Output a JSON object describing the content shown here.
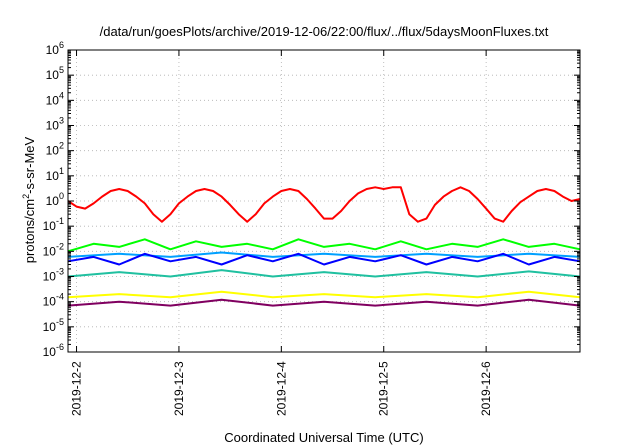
{
  "chart_data": {
    "type": "line",
    "title": "/data/run/goesPlots/archive/2019-12-06/22:00/flux/../flux/5daysMoonFluxes.txt",
    "xlabel": "Coordinated Universal Time (UTC)",
    "ylabel": {
      "base": "protons/cm",
      "sup": "2",
      "rest": "-s-sr-MeV"
    },
    "y_scale": "log",
    "ylim": [
      1e-06,
      1000000.0
    ],
    "y_ticks": [
      {
        "base": "10",
        "exp": "-6",
        "value": 1e-06
      },
      {
        "base": "10",
        "exp": "-5",
        "value": 1e-05
      },
      {
        "base": "10",
        "exp": "-4",
        "value": 0.0001
      },
      {
        "base": "10",
        "exp": "-3",
        "value": 0.001
      },
      {
        "base": "10",
        "exp": "-2",
        "value": 0.01
      },
      {
        "base": "10",
        "exp": "-1",
        "value": 0.1
      },
      {
        "base": "10",
        "exp": "0",
        "value": 1
      },
      {
        "base": "10",
        "exp": "1",
        "value": 10
      },
      {
        "base": "10",
        "exp": "2",
        "value": 100
      },
      {
        "base": "10",
        "exp": "3",
        "value": 1000
      },
      {
        "base": "10",
        "exp": "4",
        "value": 10000
      },
      {
        "base": "10",
        "exp": "5",
        "value": 100000
      },
      {
        "base": "10",
        "exp": "6",
        "value": 1000000
      }
    ],
    "xlim": [
      "2019-12-01T22:00",
      "2019-12-06T22:00"
    ],
    "x_ticks": [
      {
        "label": "2019-12-2",
        "value": "2019-12-02T00:00"
      },
      {
        "label": "2019-12-3",
        "value": "2019-12-03T00:00"
      },
      {
        "label": "2019-12-4",
        "value": "2019-12-04T00:00"
      },
      {
        "label": "2019-12-5",
        "value": "2019-12-05T00:00"
      },
      {
        "label": "2019-12-6",
        "value": "2019-12-06T00:00"
      }
    ],
    "grid": true,
    "series": [
      {
        "color": "#ff0000",
        "x": [
          "2019-12-01T22:00",
          "2019-12-02T00:00",
          "2019-12-02T02:00",
          "2019-12-02T04:00",
          "2019-12-02T06:00",
          "2019-12-02T08:00",
          "2019-12-02T10:00",
          "2019-12-02T12:00",
          "2019-12-02T14:00",
          "2019-12-02T16:00",
          "2019-12-02T18:00",
          "2019-12-02T20:00",
          "2019-12-02T22:00",
          "2019-12-03T00:00",
          "2019-12-03T02:00",
          "2019-12-03T04:00",
          "2019-12-03T06:00",
          "2019-12-03T08:00",
          "2019-12-03T10:00",
          "2019-12-03T12:00",
          "2019-12-03T14:00",
          "2019-12-03T16:00",
          "2019-12-03T18:00",
          "2019-12-03T20:00",
          "2019-12-03T22:00",
          "2019-12-04T00:00",
          "2019-12-04T02:00",
          "2019-12-04T04:00",
          "2019-12-04T06:00",
          "2019-12-04T08:00",
          "2019-12-04T10:00",
          "2019-12-04T12:00",
          "2019-12-04T14:00",
          "2019-12-04T16:00",
          "2019-12-04T18:00",
          "2019-12-04T20:00",
          "2019-12-04T22:00",
          "2019-12-05T00:00",
          "2019-12-05T02:00",
          "2019-12-05T04:00",
          "2019-12-05T06:00",
          "2019-12-05T08:00",
          "2019-12-05T10:00",
          "2019-12-05T12:00",
          "2019-12-05T14:00",
          "2019-12-05T16:00",
          "2019-12-05T18:00",
          "2019-12-05T20:00",
          "2019-12-05T22:00",
          "2019-12-06T00:00",
          "2019-12-06T02:00",
          "2019-12-06T04:00",
          "2019-12-06T06:00",
          "2019-12-06T08:00",
          "2019-12-06T10:00",
          "2019-12-06T12:00",
          "2019-12-06T14:00",
          "2019-12-06T16:00",
          "2019-12-06T18:00",
          "2019-12-06T20:00",
          "2019-12-06T22:00"
        ],
        "values": [
          1.0,
          0.6,
          0.5,
          0.8,
          1.5,
          2.5,
          3.0,
          2.5,
          1.5,
          0.8,
          0.3,
          0.15,
          0.3,
          0.8,
          1.5,
          2.5,
          3.0,
          2.5,
          1.5,
          0.7,
          0.3,
          0.15,
          0.3,
          0.8,
          1.5,
          2.5,
          3.0,
          2.5,
          1.2,
          0.5,
          0.2,
          0.2,
          0.4,
          1.0,
          2.0,
          3.0,
          3.5,
          3.0,
          3.5,
          3.5,
          0.3,
          0.15,
          0.2,
          0.7,
          1.5,
          2.5,
          3.5,
          2.5,
          1.2,
          0.5,
          0.2,
          0.15,
          0.4,
          0.9,
          1.5,
          2.5,
          3.0,
          2.5,
          1.5,
          1.0,
          1.2
        ]
      },
      {
        "color": "#00ff00",
        "x": [
          "2019-12-01T22:00",
          "2019-12-02T04:00",
          "2019-12-02T10:00",
          "2019-12-02T16:00",
          "2019-12-02T22:00",
          "2019-12-03T04:00",
          "2019-12-03T10:00",
          "2019-12-03T16:00",
          "2019-12-03T22:00",
          "2019-12-04T04:00",
          "2019-12-04T10:00",
          "2019-12-04T16:00",
          "2019-12-04T22:00",
          "2019-12-05T04:00",
          "2019-12-05T10:00",
          "2019-12-05T16:00",
          "2019-12-05T22:00",
          "2019-12-06T04:00",
          "2019-12-06T10:00",
          "2019-12-06T16:00",
          "2019-12-06T22:00"
        ],
        "values": [
          0.01,
          0.02,
          0.015,
          0.03,
          0.012,
          0.025,
          0.015,
          0.02,
          0.012,
          0.03,
          0.015,
          0.02,
          0.012,
          0.025,
          0.012,
          0.02,
          0.015,
          0.03,
          0.015,
          0.02,
          0.012
        ]
      },
      {
        "color": "#00a0ff",
        "x": [
          "2019-12-01T22:00",
          "2019-12-02T10:00",
          "2019-12-02T22:00",
          "2019-12-03T10:00",
          "2019-12-03T22:00",
          "2019-12-04T10:00",
          "2019-12-04T22:00",
          "2019-12-05T10:00",
          "2019-12-05T22:00",
          "2019-12-06T10:00",
          "2019-12-06T22:00"
        ],
        "values": [
          0.006,
          0.008,
          0.006,
          0.009,
          0.006,
          0.008,
          0.006,
          0.008,
          0.006,
          0.008,
          0.006
        ]
      },
      {
        "color": "#0000ff",
        "x": [
          "2019-12-01T22:00",
          "2019-12-02T04:00",
          "2019-12-02T10:00",
          "2019-12-02T16:00",
          "2019-12-02T22:00",
          "2019-12-03T04:00",
          "2019-12-03T10:00",
          "2019-12-03T16:00",
          "2019-12-03T22:00",
          "2019-12-04T04:00",
          "2019-12-04T10:00",
          "2019-12-04T16:00",
          "2019-12-04T22:00",
          "2019-12-05T04:00",
          "2019-12-05T10:00",
          "2019-12-05T16:00",
          "2019-12-05T22:00",
          "2019-12-06T04:00",
          "2019-12-06T10:00",
          "2019-12-06T16:00",
          "2019-12-06T22:00"
        ],
        "values": [
          0.004,
          0.006,
          0.003,
          0.008,
          0.004,
          0.006,
          0.003,
          0.007,
          0.004,
          0.008,
          0.003,
          0.006,
          0.004,
          0.007,
          0.003,
          0.006,
          0.004,
          0.008,
          0.003,
          0.006,
          0.004
        ]
      },
      {
        "color": "#20c0a0",
        "x": [
          "2019-12-01T22:00",
          "2019-12-02T10:00",
          "2019-12-02T22:00",
          "2019-12-03T10:00",
          "2019-12-03T22:00",
          "2019-12-04T10:00",
          "2019-12-04T22:00",
          "2019-12-05T10:00",
          "2019-12-05T22:00",
          "2019-12-06T10:00",
          "2019-12-06T22:00"
        ],
        "values": [
          0.001,
          0.0015,
          0.001,
          0.0018,
          0.001,
          0.0015,
          0.001,
          0.0015,
          0.001,
          0.0016,
          0.001
        ]
      },
      {
        "color": "#ffff00",
        "x": [
          "2019-12-01T22:00",
          "2019-12-02T10:00",
          "2019-12-02T22:00",
          "2019-12-03T10:00",
          "2019-12-03T22:00",
          "2019-12-04T10:00",
          "2019-12-04T22:00",
          "2019-12-05T10:00",
          "2019-12-05T22:00",
          "2019-12-06T10:00",
          "2019-12-06T22:00"
        ],
        "values": [
          0.00015,
          0.0002,
          0.00015,
          0.00025,
          0.00015,
          0.0002,
          0.00015,
          0.0002,
          0.00015,
          0.00025,
          0.00015
        ]
      },
      {
        "color": "#800060",
        "x": [
          "2019-12-01T22:00",
          "2019-12-02T10:00",
          "2019-12-02T22:00",
          "2019-12-03T10:00",
          "2019-12-03T22:00",
          "2019-12-04T10:00",
          "2019-12-04T22:00",
          "2019-12-05T10:00",
          "2019-12-05T22:00",
          "2019-12-06T10:00",
          "2019-12-06T22:00"
        ],
        "values": [
          7e-05,
          0.0001,
          7e-05,
          0.00012,
          7e-05,
          0.0001,
          7e-05,
          0.0001,
          7e-05,
          0.00012,
          7e-05
        ]
      }
    ]
  }
}
